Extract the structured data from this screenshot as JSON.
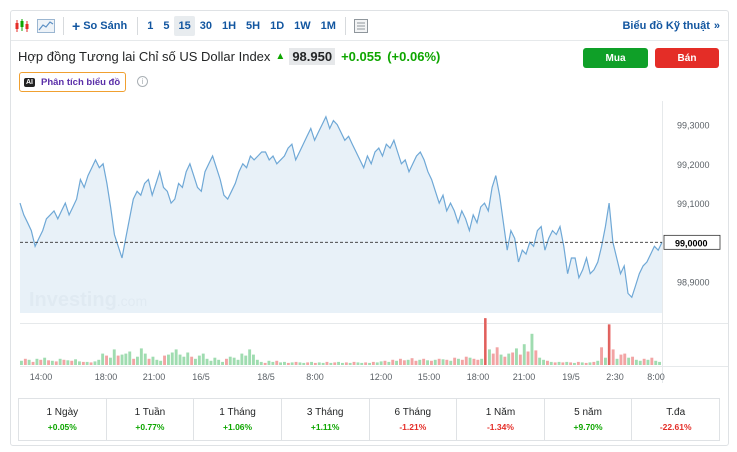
{
  "toolbar": {
    "compare_label": "So Sánh",
    "periods": [
      "1",
      "5",
      "15",
      "30",
      "1H",
      "5H",
      "1D",
      "1W",
      "1M"
    ],
    "active_period": "15",
    "tech_chart_link": "Biểu đồ Kỹ thuật"
  },
  "instrument": {
    "title": "Hợp đồng Tương lai Chỉ số US Dollar Index",
    "price": "98.950",
    "change": "+0.055",
    "change_pct": "(+0.06%)"
  },
  "actions": {
    "buy_label": "Mua",
    "sell_label": "Bán"
  },
  "ai_badge": {
    "icon_text": "AI",
    "label": "Phân tích biểu đồ"
  },
  "colors": {
    "line": "#6fa8d6",
    "area": "#e4eef7",
    "up": "#0ea600",
    "down": "#e42d27",
    "vol_up": "#9fdcb0",
    "vol_down": "#f2a4a4"
  },
  "chart_data": {
    "type": "area",
    "watermark": "Investing",
    "watermark_suffix": ".com",
    "y_ticks": [
      "99,3000",
      "99,2000",
      "99,1000",
      "99,0000",
      "98,9000"
    ],
    "ylim": [
      98.82,
      99.36
    ],
    "reference_line": 99.0,
    "current_label": "99,0000",
    "x_ticks": [
      "14:00",
      "18:00",
      "21:00",
      "16/5",
      "18/5",
      "8:00",
      "12:00",
      "15:00",
      "18:00",
      "21:00",
      "19/5",
      "2:30",
      "8:00"
    ],
    "values": [
      99.1,
      99.07,
      99.05,
      99.03,
      98.99,
      99.01,
      99.03,
      99.06,
      99.07,
      99.08,
      99.06,
      99.08,
      99.1,
      99.07,
      99.09,
      99.11,
      99.16,
      99.14,
      99.17,
      99.19,
      99.21,
      99.19,
      99.2,
      99.15,
      99.09,
      99.02,
      98.99,
      98.96,
      99.01,
      99.06,
      99.11,
      99.13,
      99.12,
      99.15,
      99.16,
      99.12,
      99.15,
      99.18,
      99.14,
      99.13,
      99.1,
      99.11,
      99.15,
      99.14,
      99.18,
      99.2,
      99.17,
      99.14,
      99.13,
      99.18,
      99.2,
      99.22,
      99.19,
      99.16,
      99.12,
      99.11,
      99.13,
      99.15,
      99.18,
      99.2,
      99.19,
      99.22,
      99.21,
      99.22,
      99.23,
      99.23,
      99.21,
      99.22,
      99.2,
      99.21,
      99.22,
      99.24,
      99.25,
      99.21,
      99.23,
      99.25,
      99.27,
      99.29,
      99.26,
      99.28,
      99.3,
      99.32,
      99.29,
      99.31,
      99.3,
      99.28,
      99.26,
      99.27,
      99.25,
      99.23,
      99.21,
      99.19,
      99.22,
      99.2,
      99.23,
      99.24,
      99.22,
      99.25,
      99.24,
      99.26,
      99.23,
      99.2,
      99.21,
      99.18,
      99.2,
      99.22,
      99.23,
      99.21,
      99.18,
      99.16,
      99.13,
      99.1,
      99.12,
      99.08,
      99.1,
      99.08,
      99.05,
      99.08,
      99.06,
      99.03,
      99.07,
      99.05,
      99.09,
      99.1,
      99.08,
      99.14,
      99.17,
      99.12,
      99.05,
      98.98,
      99.03,
      99.01,
      98.95,
      98.98,
      98.97,
      99.0,
      98.99,
      99.03,
      99.04,
      98.98,
      99.01,
      99.03,
      99.02,
      99.04,
      98.99,
      98.92,
      98.96,
      98.96,
      98.91,
      98.93,
      98.96,
      98.92,
      98.93,
      98.95,
      98.99,
      99.04,
      99.1,
      99.0,
      98.96,
      98.92,
      98.94,
      98.87,
      98.86,
      98.89,
      98.92,
      98.94,
      98.95,
      98.97,
      98.99,
      98.98,
      99.0
    ]
  },
  "volume": {
    "bars": [
      [
        1,
        0.08
      ],
      [
        0,
        0.12
      ],
      [
        1,
        0.1
      ],
      [
        0,
        0.06
      ],
      [
        1,
        0.12
      ],
      [
        0,
        0.1
      ],
      [
        1,
        0.14
      ],
      [
        0,
        0.09
      ],
      [
        1,
        0.08
      ],
      [
        0,
        0.07
      ],
      [
        1,
        0.12
      ],
      [
        0,
        0.1
      ],
      [
        1,
        0.09
      ],
      [
        0,
        0.08
      ],
      [
        1,
        0.11
      ],
      [
        1,
        0.07
      ],
      [
        0,
        0.06
      ],
      [
        1,
        0.06
      ],
      [
        0,
        0.05
      ],
      [
        1,
        0.07
      ],
      [
        1,
        0.1
      ],
      [
        1,
        0.22
      ],
      [
        0,
        0.18
      ],
      [
        1,
        0.14
      ],
      [
        1,
        0.3
      ],
      [
        0,
        0.18
      ],
      [
        1,
        0.2
      ],
      [
        1,
        0.22
      ],
      [
        1,
        0.26
      ],
      [
        0,
        0.12
      ],
      [
        1,
        0.16
      ],
      [
        1,
        0.32
      ],
      [
        1,
        0.22
      ],
      [
        0,
        0.12
      ],
      [
        1,
        0.16
      ],
      [
        1,
        0.1
      ],
      [
        1,
        0.08
      ],
      [
        0,
        0.18
      ],
      [
        1,
        0.2
      ],
      [
        1,
        0.24
      ],
      [
        1,
        0.3
      ],
      [
        1,
        0.2
      ],
      [
        1,
        0.16
      ],
      [
        1,
        0.24
      ],
      [
        0,
        0.16
      ],
      [
        1,
        0.12
      ],
      [
        1,
        0.18
      ],
      [
        1,
        0.22
      ],
      [
        1,
        0.12
      ],
      [
        1,
        0.08
      ],
      [
        1,
        0.14
      ],
      [
        1,
        0.1
      ],
      [
        1,
        0.06
      ],
      [
        0,
        0.12
      ],
      [
        1,
        0.16
      ],
      [
        1,
        0.14
      ],
      [
        1,
        0.1
      ],
      [
        1,
        0.22
      ],
      [
        1,
        0.18
      ],
      [
        1,
        0.3
      ],
      [
        1,
        0.2
      ],
      [
        1,
        0.1
      ],
      [
        1,
        0.06
      ],
      [
        0,
        0.04
      ],
      [
        1,
        0.08
      ],
      [
        1,
        0.06
      ],
      [
        0,
        0.08
      ],
      [
        1,
        0.05
      ],
      [
        1,
        0.06
      ],
      [
        0,
        0.04
      ],
      [
        1,
        0.05
      ],
      [
        0,
        0.06
      ],
      [
        1,
        0.05
      ],
      [
        1,
        0.04
      ],
      [
        0,
        0.05
      ],
      [
        1,
        0.06
      ],
      [
        0,
        0.04
      ],
      [
        1,
        0.05
      ],
      [
        1,
        0.04
      ],
      [
        0,
        0.06
      ],
      [
        1,
        0.04
      ],
      [
        0,
        0.05
      ],
      [
        1,
        0.06
      ],
      [
        1,
        0.04
      ],
      [
        0,
        0.05
      ],
      [
        1,
        0.04
      ],
      [
        0,
        0.06
      ],
      [
        1,
        0.05
      ],
      [
        1,
        0.04
      ],
      [
        0,
        0.05
      ],
      [
        1,
        0.04
      ],
      [
        0,
        0.06
      ],
      [
        1,
        0.05
      ],
      [
        1,
        0.07
      ],
      [
        0,
        0.08
      ],
      [
        1,
        0.06
      ],
      [
        0,
        0.1
      ],
      [
        1,
        0.08
      ],
      [
        0,
        0.12
      ],
      [
        0,
        0.09
      ],
      [
        1,
        0.1
      ],
      [
        0,
        0.13
      ],
      [
        0,
        0.08
      ],
      [
        1,
        0.1
      ],
      [
        0,
        0.12
      ],
      [
        1,
        0.09
      ],
      [
        0,
        0.08
      ],
      [
        1,
        0.1
      ],
      [
        0,
        0.12
      ],
      [
        1,
        0.11
      ],
      [
        0,
        0.1
      ],
      [
        1,
        0.08
      ],
      [
        0,
        0.14
      ],
      [
        1,
        0.12
      ],
      [
        0,
        0.1
      ],
      [
        0,
        0.16
      ],
      [
        1,
        0.14
      ],
      [
        0,
        0.12
      ],
      [
        0,
        0.1
      ],
      [
        1,
        0.12
      ],
      [
        0,
        0.9
      ],
      [
        1,
        0.3
      ],
      [
        0,
        0.22
      ],
      [
        0,
        0.34
      ],
      [
        1,
        0.2
      ],
      [
        0,
        0.16
      ],
      [
        1,
        0.22
      ],
      [
        0,
        0.24
      ],
      [
        1,
        0.32
      ],
      [
        0,
        0.2
      ],
      [
        1,
        0.4
      ],
      [
        0,
        0.26
      ],
      [
        1,
        0.6
      ],
      [
        0,
        0.28
      ],
      [
        1,
        0.14
      ],
      [
        1,
        0.1
      ],
      [
        0,
        0.08
      ],
      [
        1,
        0.06
      ],
      [
        0,
        0.05
      ],
      [
        1,
        0.06
      ],
      [
        0,
        0.05
      ],
      [
        1,
        0.06
      ],
      [
        0,
        0.05
      ],
      [
        1,
        0.04
      ],
      [
        0,
        0.06
      ],
      [
        1,
        0.05
      ],
      [
        0,
        0.04
      ],
      [
        1,
        0.05
      ],
      [
        0,
        0.06
      ],
      [
        1,
        0.08
      ],
      [
        0,
        0.34
      ],
      [
        1,
        0.14
      ],
      [
        0,
        0.78
      ],
      [
        0,
        0.3
      ],
      [
        1,
        0.12
      ],
      [
        0,
        0.2
      ],
      [
        0,
        0.22
      ],
      [
        1,
        0.14
      ],
      [
        0,
        0.16
      ],
      [
        1,
        0.1
      ],
      [
        1,
        0.08
      ],
      [
        0,
        0.12
      ],
      [
        1,
        0.1
      ],
      [
        0,
        0.14
      ],
      [
        1,
        0.08
      ],
      [
        1,
        0.06
      ]
    ]
  },
  "stats": [
    {
      "label": "1 Ngày",
      "value": "+0.05%",
      "dir": "up"
    },
    {
      "label": "1 Tuần",
      "value": "+0.77%",
      "dir": "up"
    },
    {
      "label": "1 Tháng",
      "value": "+1.06%",
      "dir": "up"
    },
    {
      "label": "3 Tháng",
      "value": "+1.11%",
      "dir": "up"
    },
    {
      "label": "6 Tháng",
      "value": "-1.21%",
      "dir": "down"
    },
    {
      "label": "1 Năm",
      "value": "-1.34%",
      "dir": "down"
    },
    {
      "label": "5 năm",
      "value": "+9.70%",
      "dir": "up"
    },
    {
      "label": "T.đa",
      "value": "-22.61%",
      "dir": "down"
    }
  ]
}
